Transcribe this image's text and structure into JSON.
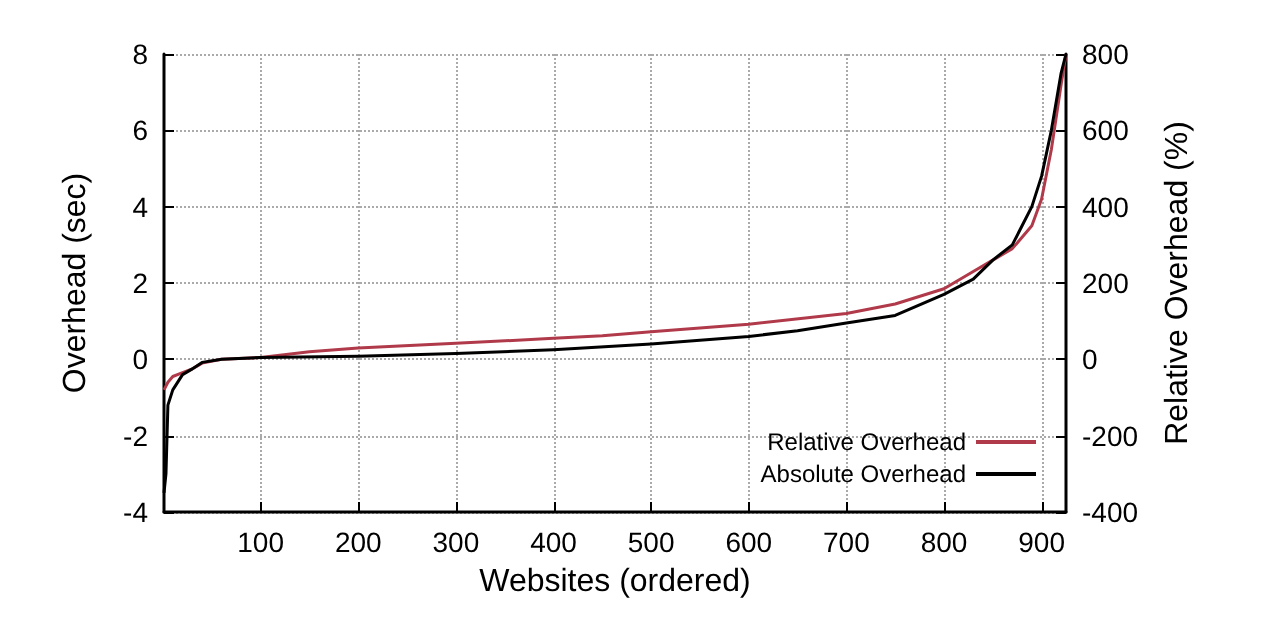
{
  "chart_data": {
    "type": "line",
    "xlabel": "Websites (ordered)",
    "ylabel": "Overhead (sec)",
    "y2label": "Relative Overhead (%)",
    "xlim": [
      1,
      925
    ],
    "xticks": [
      100,
      200,
      300,
      400,
      500,
      600,
      700,
      800,
      900
    ],
    "ylim": [
      -4,
      8
    ],
    "yticks": [
      -4,
      -2,
      0,
      2,
      4,
      6,
      8
    ],
    "y2lim": [
      -400,
      800
    ],
    "y2ticks": [
      -400,
      -200,
      0,
      200,
      400,
      600,
      800
    ],
    "grid": true,
    "legend": "bottom right",
    "marker": "none",
    "line_style": "solid",
    "series": [
      {
        "name": "Relative Overhead",
        "color": "#b03a4a",
        "axis": "y2",
        "x": [
          1,
          5,
          10,
          20,
          30,
          40,
          60,
          100,
          150,
          200,
          300,
          400,
          450,
          500,
          600,
          700,
          750,
          800,
          830,
          850,
          870,
          880,
          890,
          900,
          910,
          920,
          925
        ],
        "values": [
          -80,
          -60,
          -45,
          -35,
          -25,
          -10,
          0,
          5,
          20,
          30,
          42,
          55,
          62,
          72,
          92,
          120,
          145,
          185,
          230,
          260,
          290,
          320,
          350,
          420,
          550,
          720,
          800
        ]
      },
      {
        "name": "Absolute Overhead",
        "color": "#000000",
        "x": [
          1,
          3,
          5,
          10,
          20,
          30,
          40,
          60,
          100,
          200,
          300,
          400,
          500,
          600,
          650,
          700,
          750,
          800,
          830,
          850,
          870,
          880,
          890,
          900,
          910,
          920,
          925
        ],
        "values": [
          -3.5,
          -3.0,
          -1.2,
          -0.8,
          -0.4,
          -0.25,
          -0.08,
          0,
          0.05,
          0.08,
          0.15,
          0.25,
          0.4,
          0.6,
          0.75,
          0.95,
          1.15,
          1.7,
          2.1,
          2.6,
          3.0,
          3.5,
          4.0,
          4.8,
          6.0,
          7.5,
          8
        ]
      }
    ]
  }
}
